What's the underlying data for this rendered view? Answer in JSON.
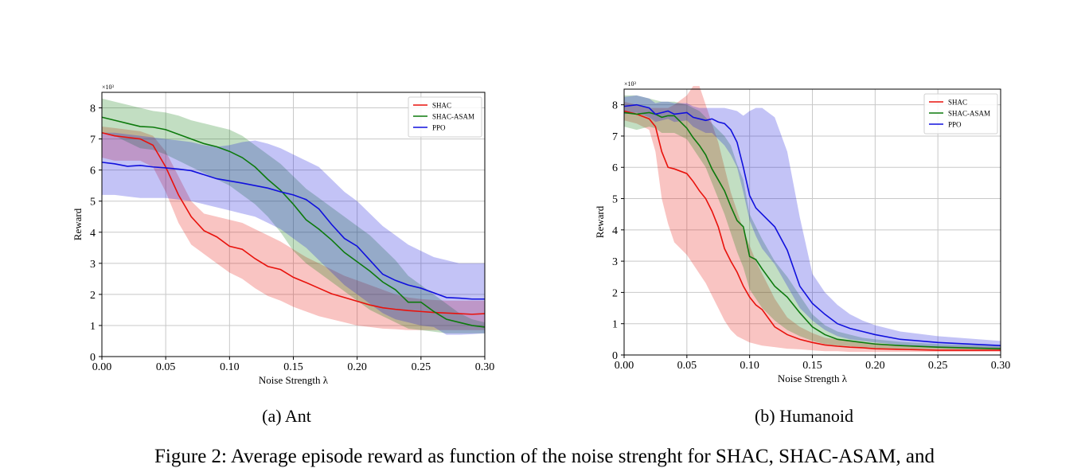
{
  "figure": {
    "subcaptions": [
      "(a) Ant",
      "(b) Humanoid"
    ],
    "caption": "Figure 2: Average episode reward as function of the noise strenght for SHAC, SHAC-ASAM, and"
  },
  "chart_data": [
    {
      "type": "line",
      "title": "",
      "xlabel": "Noise Strength λ",
      "ylabel": "Reward",
      "y_multiplier": "×10³",
      "xlim": [
        0.0,
        0.3
      ],
      "ylim": [
        0,
        8.5
      ],
      "xticks": [
        "0.00",
        "0.05",
        "0.10",
        "0.15",
        "0.20",
        "0.25",
        "0.30"
      ],
      "yticks": [
        "0",
        "1",
        "2",
        "3",
        "4",
        "5",
        "6",
        "7",
        "8"
      ],
      "grid": true,
      "legend": "top-right",
      "series": [
        {
          "name": "SHAC",
          "color": "#e8120c",
          "x": [
            0,
            0.01,
            0.02,
            0.03,
            0.04,
            0.05,
            0.06,
            0.07,
            0.08,
            0.09,
            0.1,
            0.11,
            0.12,
            0.13,
            0.14,
            0.15,
            0.16,
            0.17,
            0.18,
            0.19,
            0.2,
            0.21,
            0.22,
            0.23,
            0.24,
            0.25,
            0.26,
            0.27,
            0.28,
            0.29,
            0.3
          ],
          "values": [
            7.2,
            7.1,
            7.05,
            7.0,
            6.8,
            6.1,
            5.2,
            4.5,
            4.05,
            3.85,
            3.55,
            3.45,
            3.15,
            2.9,
            2.8,
            2.55,
            2.38,
            2.2,
            2.02,
            1.9,
            1.78,
            1.66,
            1.57,
            1.52,
            1.48,
            1.45,
            1.42,
            1.4,
            1.38,
            1.36,
            1.38
          ],
          "lower": [
            6.4,
            6.3,
            6.3,
            6.3,
            6.1,
            5.3,
            4.3,
            3.6,
            3.3,
            3.0,
            2.7,
            2.5,
            2.2,
            1.95,
            1.8,
            1.6,
            1.45,
            1.3,
            1.2,
            1.1,
            1.0,
            0.95,
            0.9,
            0.88,
            0.85,
            0.85,
            0.85,
            0.85,
            0.85,
            0.85,
            0.85
          ],
          "upper": [
            7.4,
            7.35,
            7.3,
            7.25,
            7.1,
            6.6,
            5.8,
            5.0,
            4.6,
            4.5,
            4.4,
            4.3,
            4.1,
            3.9,
            3.7,
            3.45,
            3.2,
            3.0,
            2.8,
            2.6,
            2.45,
            2.3,
            2.15,
            2.0,
            1.9,
            1.85,
            1.82,
            1.8,
            1.8,
            1.8,
            1.8
          ]
        },
        {
          "name": "SHAC-ASAM",
          "color": "#0d7a0d",
          "x": [
            0,
            0.01,
            0.02,
            0.03,
            0.04,
            0.05,
            0.06,
            0.07,
            0.08,
            0.09,
            0.1,
            0.11,
            0.12,
            0.13,
            0.14,
            0.15,
            0.16,
            0.17,
            0.18,
            0.19,
            0.2,
            0.21,
            0.22,
            0.23,
            0.24,
            0.25,
            0.26,
            0.27,
            0.28,
            0.29,
            0.3
          ],
          "values": [
            7.7,
            7.6,
            7.5,
            7.4,
            7.38,
            7.3,
            7.15,
            7.0,
            6.85,
            6.75,
            6.6,
            6.4,
            6.1,
            5.7,
            5.35,
            4.9,
            4.4,
            4.1,
            3.75,
            3.35,
            3.05,
            2.75,
            2.4,
            2.15,
            1.75,
            1.75,
            1.45,
            1.2,
            1.1,
            1.0,
            0.95
          ],
          "lower": [
            7.2,
            7.1,
            6.9,
            6.7,
            6.65,
            6.5,
            6.3,
            6.1,
            5.9,
            5.7,
            5.5,
            5.2,
            4.9,
            4.5,
            4.0,
            3.4,
            3.0,
            2.7,
            2.4,
            2.1,
            1.8,
            1.5,
            1.3,
            1.1,
            0.9,
            0.85,
            0.8,
            0.75,
            0.75,
            0.75,
            0.75
          ],
          "upper": [
            8.3,
            8.2,
            8.1,
            8.0,
            7.9,
            7.85,
            7.75,
            7.6,
            7.5,
            7.4,
            7.3,
            7.1,
            6.8,
            6.5,
            6.2,
            5.8,
            5.4,
            5.1,
            4.8,
            4.5,
            4.2,
            3.9,
            3.5,
            3.1,
            2.6,
            2.3,
            2.0,
            1.7,
            1.4,
            1.2,
            1.1
          ]
        },
        {
          "name": "PPO",
          "color": "#1010dd",
          "x": [
            0,
            0.01,
            0.02,
            0.03,
            0.04,
            0.05,
            0.06,
            0.07,
            0.08,
            0.09,
            0.1,
            0.11,
            0.12,
            0.13,
            0.14,
            0.15,
            0.16,
            0.17,
            0.18,
            0.19,
            0.2,
            0.21,
            0.22,
            0.23,
            0.24,
            0.25,
            0.26,
            0.27,
            0.28,
            0.29,
            0.3
          ],
          "values": [
            6.25,
            6.2,
            6.12,
            6.15,
            6.1,
            6.07,
            6.03,
            5.98,
            5.85,
            5.72,
            5.65,
            5.58,
            5.5,
            5.42,
            5.3,
            5.2,
            5.05,
            4.75,
            4.25,
            3.8,
            3.55,
            3.1,
            2.65,
            2.45,
            2.3,
            2.2,
            2.05,
            1.9,
            1.88,
            1.85,
            1.85
          ],
          "lower": [
            5.2,
            5.2,
            5.15,
            5.1,
            5.1,
            5.1,
            5.05,
            5.0,
            4.9,
            4.8,
            4.7,
            4.6,
            4.5,
            4.3,
            4.1,
            3.8,
            3.5,
            3.1,
            2.7,
            2.3,
            2.0,
            1.7,
            1.4,
            1.2,
            1.1,
            1.0,
            0.95,
            0.7,
            0.7,
            0.72,
            0.75
          ],
          "upper": [
            7.2,
            7.2,
            7.15,
            7.1,
            7.05,
            7.0,
            6.95,
            6.9,
            6.8,
            6.75,
            6.8,
            6.9,
            6.95,
            6.85,
            6.7,
            6.5,
            6.3,
            6.1,
            5.7,
            5.3,
            5.0,
            4.6,
            4.2,
            3.9,
            3.6,
            3.4,
            3.2,
            3.1,
            3.0,
            3.0,
            3.0
          ]
        }
      ]
    },
    {
      "type": "line",
      "title": "",
      "xlabel": "Noise Strength λ",
      "ylabel": "Reward",
      "y_multiplier": "×10³",
      "xlim": [
        0.0,
        0.3
      ],
      "ylim": [
        0,
        8.5
      ],
      "xticks": [
        "0.00",
        "0.05",
        "0.10",
        "0.15",
        "0.20",
        "0.25",
        "0.30"
      ],
      "yticks": [
        "0",
        "1",
        "2",
        "3",
        "4",
        "5",
        "6",
        "7",
        "8"
      ],
      "grid": true,
      "legend": "top-right",
      "series": [
        {
          "name": "SHAC",
          "color": "#e8120c",
          "x": [
            0,
            0.01,
            0.02,
            0.025,
            0.03,
            0.035,
            0.04,
            0.05,
            0.055,
            0.06,
            0.065,
            0.07,
            0.075,
            0.08,
            0.085,
            0.09,
            0.095,
            0.1,
            0.105,
            0.11,
            0.12,
            0.13,
            0.14,
            0.15,
            0.16,
            0.17,
            0.18,
            0.19,
            0.2,
            0.22,
            0.25,
            0.3
          ],
          "values": [
            7.8,
            7.7,
            7.55,
            7.3,
            6.5,
            6.0,
            5.95,
            5.8,
            5.55,
            5.25,
            5.0,
            4.6,
            4.1,
            3.4,
            3.0,
            2.65,
            2.2,
            1.85,
            1.6,
            1.45,
            0.9,
            0.65,
            0.5,
            0.4,
            0.32,
            0.28,
            0.25,
            0.23,
            0.2,
            0.18,
            0.15,
            0.15
          ],
          "lower": [
            7.5,
            7.4,
            7.2,
            6.5,
            5.0,
            4.2,
            3.6,
            3.2,
            2.9,
            2.6,
            2.3,
            1.9,
            1.5,
            1.1,
            0.8,
            0.6,
            0.5,
            0.4,
            0.35,
            0.3,
            0.25,
            0.2,
            0.18,
            0.15,
            0.12,
            0.12,
            0.1,
            0.1,
            0.1,
            0.1,
            0.1,
            0.1
          ],
          "upper": [
            8.1,
            8.0,
            7.9,
            7.9,
            7.9,
            7.9,
            8.0,
            8.3,
            8.6,
            8.6,
            8.0,
            7.4,
            6.8,
            6.0,
            5.2,
            4.6,
            4.0,
            3.5,
            3.0,
            2.6,
            1.8,
            1.2,
            0.9,
            0.7,
            0.55,
            0.5,
            0.45,
            0.4,
            0.38,
            0.32,
            0.28,
            0.25
          ]
        },
        {
          "name": "SHAC-ASAM",
          "color": "#0d7a0d",
          "x": [
            0,
            0.01,
            0.02,
            0.025,
            0.03,
            0.035,
            0.04,
            0.05,
            0.055,
            0.06,
            0.065,
            0.07,
            0.075,
            0.08,
            0.085,
            0.09,
            0.095,
            0.1,
            0.105,
            0.11,
            0.12,
            0.13,
            0.14,
            0.15,
            0.16,
            0.17,
            0.18,
            0.19,
            0.2,
            0.22,
            0.25,
            0.3
          ],
          "values": [
            7.75,
            7.7,
            7.75,
            7.7,
            7.6,
            7.65,
            7.65,
            7.25,
            6.95,
            6.7,
            6.4,
            5.95,
            5.6,
            5.25,
            4.75,
            4.3,
            4.1,
            3.15,
            3.05,
            2.75,
            2.2,
            1.85,
            1.35,
            0.9,
            0.65,
            0.5,
            0.45,
            0.4,
            0.35,
            0.3,
            0.25,
            0.2
          ],
          "lower": [
            7.3,
            7.2,
            7.3,
            7.25,
            7.1,
            7.1,
            7.1,
            6.9,
            6.6,
            6.3,
            6.0,
            5.5,
            5.0,
            4.5,
            3.9,
            3.3,
            2.8,
            2.1,
            1.8,
            1.5,
            1.1,
            0.8,
            0.6,
            0.45,
            0.35,
            0.3,
            0.28,
            0.25,
            0.22,
            0.2,
            0.18,
            0.15
          ],
          "upper": [
            8.3,
            8.3,
            8.2,
            8.15,
            8.1,
            8.1,
            8.1,
            8.0,
            7.9,
            7.8,
            7.6,
            7.4,
            7.2,
            7.0,
            6.7,
            6.1,
            5.6,
            4.5,
            4.1,
            3.7,
            3.0,
            2.5,
            1.9,
            1.3,
            0.95,
            0.75,
            0.65,
            0.55,
            0.5,
            0.42,
            0.35,
            0.3
          ]
        },
        {
          "name": "PPO",
          "color": "#1010dd",
          "x": [
            0,
            0.01,
            0.02,
            0.025,
            0.03,
            0.035,
            0.04,
            0.05,
            0.055,
            0.06,
            0.065,
            0.07,
            0.075,
            0.08,
            0.085,
            0.09,
            0.095,
            0.1,
            0.105,
            0.11,
            0.12,
            0.13,
            0.14,
            0.15,
            0.16,
            0.17,
            0.18,
            0.19,
            0.2,
            0.22,
            0.25,
            0.3
          ],
          "values": [
            7.95,
            8.0,
            7.9,
            7.7,
            7.75,
            7.8,
            7.7,
            7.75,
            7.6,
            7.55,
            7.5,
            7.55,
            7.45,
            7.4,
            7.2,
            6.8,
            6.0,
            5.1,
            4.7,
            4.5,
            4.1,
            3.35,
            2.2,
            1.65,
            1.3,
            1.0,
            0.85,
            0.75,
            0.65,
            0.5,
            0.4,
            0.3
          ],
          "lower": [
            7.7,
            7.75,
            7.6,
            7.45,
            7.5,
            7.55,
            7.45,
            7.5,
            7.3,
            7.2,
            7.1,
            7.1,
            6.9,
            6.7,
            6.4,
            6.0,
            5.2,
            4.3,
            3.8,
            3.4,
            2.9,
            2.2,
            1.5,
            1.1,
            0.8,
            0.6,
            0.5,
            0.45,
            0.4,
            0.32,
            0.25,
            0.2
          ],
          "upper": [
            8.25,
            8.3,
            8.2,
            8.05,
            8.1,
            8.1,
            8.05,
            8.05,
            7.95,
            7.9,
            7.9,
            7.9,
            7.9,
            7.9,
            7.85,
            7.8,
            7.65,
            7.8,
            7.9,
            7.9,
            7.6,
            6.5,
            4.4,
            2.6,
            2.0,
            1.6,
            1.3,
            1.1,
            0.95,
            0.75,
            0.6,
            0.45
          ]
        }
      ]
    }
  ]
}
